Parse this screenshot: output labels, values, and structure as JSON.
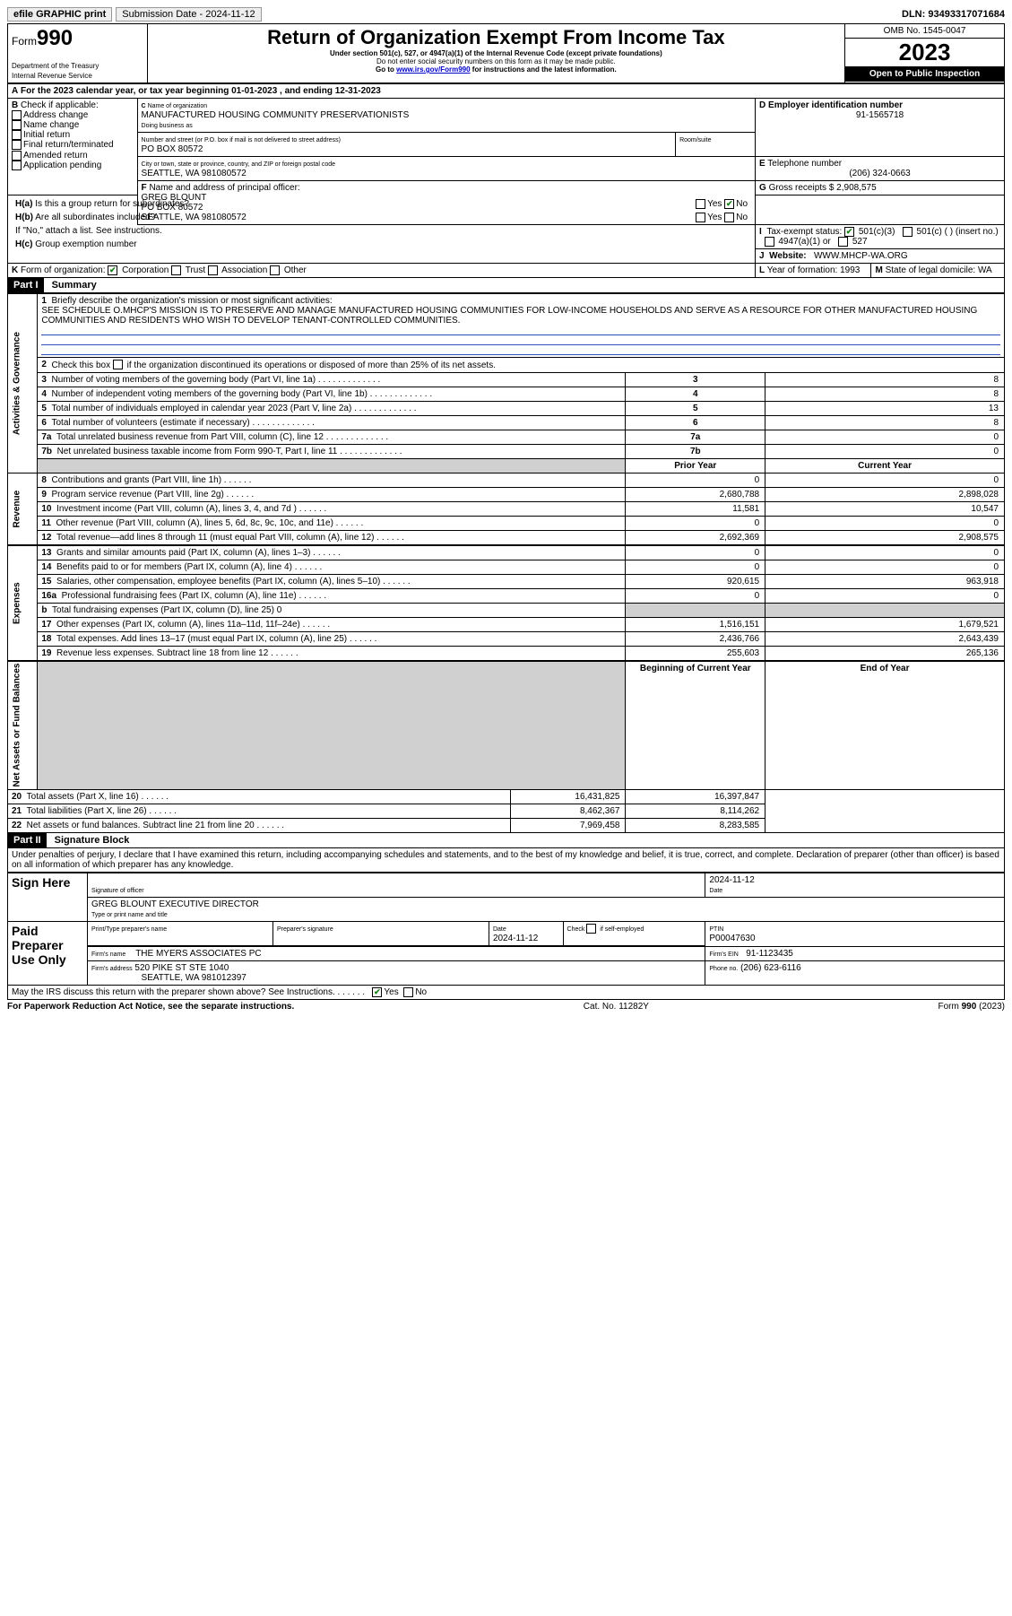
{
  "top": {
    "print": "efile GRAPHIC print",
    "sub_label": "Submission Date - 2024-11-12",
    "dln": "DLN: 93493317071684"
  },
  "header": {
    "form_label": "Form",
    "form_number": "990",
    "dept": "Department of the Treasury",
    "irs": "Internal Revenue Service",
    "title": "Return of Organization Exempt From Income Tax",
    "subtitle": "Under section 501(c), 527, or 4947(a)(1) of the Internal Revenue Code (except private foundations)",
    "note1": "Do not enter social security numbers on this form as it may be made public.",
    "note2_prefix": "Go to ",
    "note2_link": "www.irs.gov/Form990",
    "note2_suffix": " for instructions and the latest information.",
    "omb": "OMB No. 1545-0047",
    "year": "2023",
    "inspect": "Open to Public Inspection"
  },
  "A": {
    "text_prefix": "For the 2023 calendar year, or tax year beginning ",
    "begin": "01-01-2023",
    "mid": " , and ending ",
    "end": "12-31-2023"
  },
  "B": {
    "label": "Check if applicable:",
    "addr": "Address change",
    "name": "Name change",
    "initial": "Initial return",
    "final": "Final return/terminated",
    "amended": "Amended return",
    "app": "Application pending"
  },
  "C": {
    "name_label": "Name of organization",
    "name": "MANUFACTURED HOUSING COMMUNITY PRESERVATIONISTS",
    "dba_label": "Doing business as",
    "street_label": "Number and street (or P.O. box if mail is not delivered to street address)",
    "room_label": "Room/suite",
    "street": "PO BOX 80572",
    "city_label": "City or town, state or province, country, and ZIP or foreign postal code",
    "city": "SEATTLE, WA  981080572"
  },
  "D": {
    "label": "Employer identification number",
    "value": "91-1565718"
  },
  "E": {
    "label": "Telephone number",
    "value": "(206) 324-0663"
  },
  "G": {
    "label": "Gross receipts $",
    "value": "2,908,575"
  },
  "F": {
    "label": "Name and address of principal officer:",
    "name": "GREG BLOUNT",
    "addr1": "PO BOX 80572",
    "addr2": "SEATTLE, WA  981080572"
  },
  "H": {
    "a": "Is this a group return for subordinates?",
    "b": "Are all subordinates included?",
    "b_note": "If \"No,\" attach a list. See instructions.",
    "c": "Group exemption number",
    "yes": "Yes",
    "no": "No"
  },
  "I": {
    "label": "Tax-exempt status:",
    "c3": "501(c)(3)",
    "c": "501(c) (  ) (insert no.)",
    "a1": "4947(a)(1) or",
    "s527": "527"
  },
  "J": {
    "label": "Website:",
    "value": "WWW.MHCP-WA.ORG"
  },
  "K": {
    "label": "Form of organization:",
    "corp": "Corporation",
    "trust": "Trust",
    "assoc": "Association",
    "other": "Other"
  },
  "L": {
    "label": "Year of formation:",
    "value": "1993"
  },
  "M": {
    "label": "State of legal domicile:",
    "value": "WA"
  },
  "part1": {
    "header": "Part I",
    "title": "Summary",
    "q1": "Briefly describe the organization's mission or most significant activities:",
    "mission": "SEE SCHEDULE O.MHCP'S MISSION IS TO PRESERVE AND MANAGE MANUFACTURED HOUSING COMMUNITIES FOR LOW-INCOME HOUSEHOLDS AND SERVE AS A RESOURCE FOR OTHER MANUFACTURED HOUSING COMMUNITIES AND RESIDENTS WHO WISH TO DEVELOP TENANT-CONTROLLED COMMUNITIES.",
    "q2": "Check this box      if the organization discontinued its operations or disposed of more than 25% of its net assets.",
    "sections": {
      "gov": "Activities & Governance",
      "rev": "Revenue",
      "exp": "Expenses",
      "net": "Net Assets or Fund Balances"
    },
    "cols": {
      "prior": "Prior Year",
      "current": "Current Year",
      "begin": "Beginning of Current Year",
      "end": "End of Year"
    },
    "rows": [
      {
        "n": "3",
        "t": "Number of voting members of the governing body (Part VI, line 1a)",
        "v": "8"
      },
      {
        "n": "4",
        "t": "Number of independent voting members of the governing body (Part VI, line 1b)",
        "v": "8"
      },
      {
        "n": "5",
        "t": "Total number of individuals employed in calendar year 2023 (Part V, line 2a)",
        "v": "13"
      },
      {
        "n": "6",
        "t": "Total number of volunteers (estimate if necessary)",
        "v": "8"
      },
      {
        "n": "7a",
        "t": "Total unrelated business revenue from Part VIII, column (C), line 12",
        "v": "0"
      },
      {
        "n": "7b",
        "t": "Net unrelated business taxable income from Form 990-T, Part I, line 11",
        "v": "0"
      }
    ],
    "rev_rows": [
      {
        "n": "8",
        "t": "Contributions and grants (Part VIII, line 1h)",
        "p": "0",
        "c": "0"
      },
      {
        "n": "9",
        "t": "Program service revenue (Part VIII, line 2g)",
        "p": "2,680,788",
        "c": "2,898,028"
      },
      {
        "n": "10",
        "t": "Investment income (Part VIII, column (A), lines 3, 4, and 7d )",
        "p": "11,581",
        "c": "10,547"
      },
      {
        "n": "11",
        "t": "Other revenue (Part VIII, column (A), lines 5, 6d, 8c, 9c, 10c, and 11e)",
        "p": "0",
        "c": "0"
      },
      {
        "n": "12",
        "t": "Total revenue—add lines 8 through 11 (must equal Part VIII, column (A), line 12)",
        "p": "2,692,369",
        "c": "2,908,575"
      }
    ],
    "exp_rows": [
      {
        "n": "13",
        "t": "Grants and similar amounts paid (Part IX, column (A), lines 1–3)",
        "p": "0",
        "c": "0"
      },
      {
        "n": "14",
        "t": "Benefits paid to or for members (Part IX, column (A), line 4)",
        "p": "0",
        "c": "0"
      },
      {
        "n": "15",
        "t": "Salaries, other compensation, employee benefits (Part IX, column (A), lines 5–10)",
        "p": "920,615",
        "c": "963,918"
      },
      {
        "n": "16a",
        "t": "Professional fundraising fees (Part IX, column (A), line 11e)",
        "p": "0",
        "c": "0"
      },
      {
        "n": "b",
        "t": "Total fundraising expenses (Part IX, column (D), line 25) 0",
        "p": "",
        "c": "",
        "shade": true
      },
      {
        "n": "17",
        "t": "Other expenses (Part IX, column (A), lines 11a–11d, 11f–24e)",
        "p": "1,516,151",
        "c": "1,679,521"
      },
      {
        "n": "18",
        "t": "Total expenses. Add lines 13–17 (must equal Part IX, column (A), line 25)",
        "p": "2,436,766",
        "c": "2,643,439"
      },
      {
        "n": "19",
        "t": "Revenue less expenses. Subtract line 18 from line 12",
        "p": "255,603",
        "c": "265,136"
      }
    ],
    "net_rows": [
      {
        "n": "20",
        "t": "Total assets (Part X, line 16)",
        "p": "16,431,825",
        "c": "16,397,847"
      },
      {
        "n": "21",
        "t": "Total liabilities (Part X, line 26)",
        "p": "8,462,367",
        "c": "8,114,262"
      },
      {
        "n": "22",
        "t": "Net assets or fund balances. Subtract line 21 from line 20",
        "p": "7,969,458",
        "c": "8,283,585"
      }
    ]
  },
  "part2": {
    "header": "Part II",
    "title": "Signature Block",
    "perjury": "Under penalties of perjury, I declare that I have examined this return, including accompanying schedules and statements, and to the best of my knowledge and belief, it is true, correct, and complete. Declaration of preparer (other than officer) is based on all information of which preparer has any knowledge."
  },
  "sign": {
    "here": "Sign Here",
    "sig_label": "Signature of officer",
    "name": "GREG BLOUNT  EXECUTIVE DIRECTOR",
    "type_label": "Type or print name and title",
    "date_label": "Date",
    "date": "2024-11-12"
  },
  "paid": {
    "label": "Paid Preparer Use Only",
    "pname_label": "Print/Type preparer's name",
    "psig_label": "Preparer's signature",
    "pdate_label": "Date",
    "pdate": "2024-11-12",
    "check_label": "Check         if self-employed",
    "ptin_label": "PTIN",
    "ptin": "P00047630",
    "firm_name_label": "Firm's name",
    "firm_name": "THE MYERS ASSOCIATES PC",
    "firm_ein_label": "Firm's EIN",
    "firm_ein": "91-1123435",
    "firm_addr_label": "Firm's address",
    "firm_addr1": "520 PIKE ST STE 1040",
    "firm_addr2": "SEATTLE, WA  981012397",
    "phone_label": "Phone no.",
    "phone": "(206) 623-6116"
  },
  "discuss": {
    "text": "May the IRS discuss this return with the preparer shown above? See Instructions.",
    "yes": "Yes",
    "no": "No"
  },
  "footer": {
    "left": "For Paperwork Reduction Act Notice, see the separate instructions.",
    "mid": "Cat. No. 11282Y",
    "right": "Form 990 (2023)"
  }
}
